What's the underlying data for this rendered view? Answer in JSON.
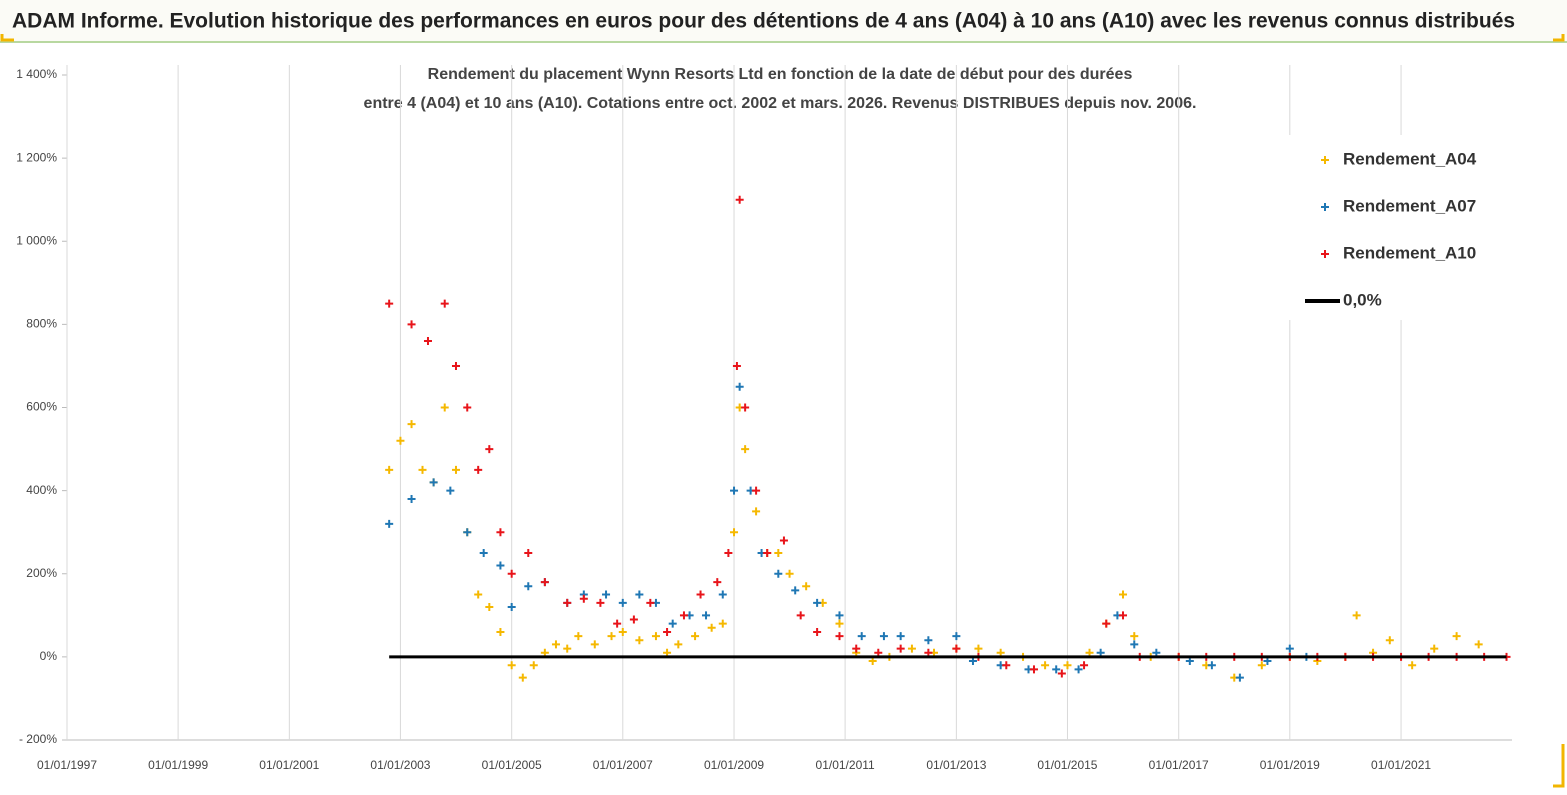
{
  "header": {
    "title": "ADAM Informe. Evolution historique des performances en euros pour des détentions de 4 ans (A04) à 10 ans (A10) avec les revenus connus distribués"
  },
  "chart_data": {
    "type": "scatter",
    "title": [
      "Rendement du placement Wynn Resorts Ltd en fonction de la date de début pour des durées",
      "entre 4 (A04) et 10 ans (A10). Cotations entre oct. 2002 et mars. 2026. Revenus DISTRIBUES depuis nov. 2006."
    ],
    "xlim": [
      "01/01/1997",
      "31/12/2022"
    ],
    "xticks": [
      "01/01/1997",
      "01/01/1999",
      "01/01/2001",
      "01/01/2003",
      "01/01/2005",
      "01/01/2007",
      "01/01/2009",
      "01/01/2011",
      "01/01/2013",
      "01/01/2015",
      "01/01/2017",
      "01/01/2019",
      "01/01/2021"
    ],
    "ylim": [
      -200,
      1400
    ],
    "yticks": [
      {
        "value": -200,
        "label": "- 200%"
      },
      {
        "value": 0,
        "label": "0%"
      },
      {
        "value": 200,
        "label": "200%"
      },
      {
        "value": 400,
        "label": "400%"
      },
      {
        "value": 600,
        "label": "600%"
      },
      {
        "value": 800,
        "label": "800%"
      },
      {
        "value": 1000,
        "label": "1 000%"
      },
      {
        "value": 1200,
        "label": "1 200%"
      },
      {
        "value": 1400,
        "label": "1 400%"
      }
    ],
    "grid": "x",
    "legend": "top-right",
    "series": [
      {
        "name": "Rendement_A04",
        "color": "#f5b800",
        "marker": "+",
        "x": [
          "19/10/2002",
          "01/01/2003",
          "15/03/2003",
          "26/05/2003",
          "07/08/2003",
          "19/10/2003",
          "01/01/2004",
          "15/03/2004",
          "26/05/2004",
          "07/08/2004",
          "19/10/2004",
          "01/01/2005",
          "15/03/2005",
          "26/05/2005",
          "07/08/2005",
          "19/10/2005",
          "01/01/2006",
          "15/03/2006",
          "01/07/2006",
          "19/10/2006",
          "01/01/2007",
          "20/04/2007",
          "07/08/2007",
          "19/10/2007",
          "01/01/2008",
          "20/04/2008",
          "07/08/2008",
          "19/10/2008",
          "01/01/2009",
          "07/02/2009",
          "15/03/2009",
          "26/05/2009",
          "07/08/2009",
          "19/10/2009",
          "01/01/2010",
          "20/04/2010",
          "07/08/2010",
          "25/11/2010",
          "15/03/2011",
          "01/07/2011",
          "19/10/2011",
          "15/03/2012",
          "07/08/2012",
          "01/01/2013",
          "26/05/2013",
          "19/10/2013",
          "15/03/2014",
          "07/08/2014",
          "01/01/2015",
          "26/05/2015",
          "13/09/2015",
          "01/01/2016",
          "15/03/2016",
          "01/07/2016",
          "01/01/2017",
          "01/07/2017",
          "01/01/2018",
          "01/07/2018",
          "01/01/2019",
          "01/07/2019",
          "01/01/2020",
          "15/03/2020",
          "01/07/2020",
          "19/10/2020",
          "15/03/2021",
          "07/08/2021",
          "01/01/2022",
          "26/05/2022"
        ],
        "values": [
          450,
          520,
          560,
          450,
          420,
          600,
          450,
          300,
          150,
          120,
          60,
          -20,
          -50,
          -20,
          10,
          30,
          20,
          50,
          30,
          50,
          60,
          40,
          50,
          10,
          30,
          50,
          70,
          80,
          300,
          600,
          500,
          350,
          250,
          250,
          200,
          170,
          130,
          80,
          10,
          -10,
          0,
          20,
          10,
          20,
          20,
          10,
          0,
          -20,
          -20,
          10,
          80,
          150,
          50,
          0,
          0,
          -20,
          -50,
          -20,
          0,
          -10,
          0,
          100,
          10,
          40,
          -20,
          20,
          50,
          30
        ]
      },
      {
        "name": "Rendement_A07",
        "color": "#1f77b4",
        "marker": "+",
        "x": [
          "19/10/2002",
          "15/03/2003",
          "07/08/2003",
          "25/11/2003",
          "15/03/2004",
          "01/07/2004",
          "19/10/2004",
          "01/01/2005",
          "20/04/2005",
          "07/08/2005",
          "01/01/2006",
          "20/04/2006",
          "13/09/2006",
          "01/01/2007",
          "20/04/2007",
          "07/08/2007",
          "25/11/2007",
          "15/03/2008",
          "01/07/2008",
          "19/10/2008",
          "01/01/2009",
          "07/02/2009",
          "20/04/2009",
          "01/07/2009",
          "19/10/2009",
          "07/02/2010",
          "01/07/2010",
          "25/11/2010",
          "20/04/2011",
          "13/09/2011",
          "01/01/2012",
          "01/07/2012",
          "01/01/2013",
          "20/04/2013",
          "19/10/2013",
          "20/04/2014",
          "19/10/2014",
          "15/03/2015",
          "07/08/2015",
          "25/11/2015",
          "15/03/2016",
          "07/08/2016",
          "15/03/2017",
          "07/08/2017",
          "07/02/2018",
          "07/08/2018",
          "01/01/2019",
          "20/04/2019"
        ],
        "values": [
          320,
          380,
          420,
          400,
          300,
          250,
          220,
          120,
          170,
          180,
          130,
          150,
          150,
          130,
          150,
          130,
          80,
          100,
          100,
          150,
          400,
          650,
          400,
          250,
          200,
          160,
          130,
          100,
          50,
          50,
          50,
          40,
          50,
          -10,
          -20,
          -30,
          -30,
          -30,
          10,
          100,
          30,
          10,
          -10,
          -20,
          -50,
          -10,
          20,
          0
        ]
      },
      {
        "name": "Rendement_A10",
        "color": "#e8141a",
        "marker": "+",
        "x": [
          "19/10/2002",
          "15/03/2003",
          "01/07/2003",
          "19/10/2003",
          "01/01/2004",
          "15/03/2004",
          "26/05/2004",
          "07/08/2004",
          "19/10/2004",
          "01/01/2005",
          "20/04/2005",
          "07/08/2005",
          "01/01/2006",
          "20/04/2006",
          "07/08/2006",
          "25/11/2006",
          "15/03/2007",
          "01/07/2007",
          "19/10/2007",
          "07/02/2008",
          "26/05/2008",
          "13/09/2008",
          "25/11/2008",
          "20/01/2009",
          "07/02/2009",
          "15/03/2009",
          "26/05/2009",
          "07/08/2009",
          "25/11/2009",
          "15/03/2010",
          "01/07/2010",
          "25/11/2010",
          "15/03/2011",
          "07/08/2011",
          "01/01/2012",
          "01/07/2012",
          "01/01/2013",
          "26/05/2013",
          "25/11/2013",
          "26/05/2014",
          "25/11/2014",
          "20/04/2015",
          "13/09/2015",
          "01/01/2016",
          "20/04/2016",
          "01/01/2017",
          "01/07/2017",
          "01/01/2018",
          "01/07/2018",
          "01/01/2019",
          "01/07/2019",
          "01/01/2020",
          "01/07/2020",
          "01/01/2021",
          "01/07/2021",
          "01/01/2022",
          "01/07/2022",
          "25/11/2022"
        ],
        "values": [
          850,
          800,
          760,
          850,
          700,
          600,
          450,
          500,
          300,
          200,
          250,
          180,
          130,
          140,
          130,
          80,
          90,
          130,
          60,
          100,
          150,
          180,
          250,
          700,
          1100,
          600,
          400,
          250,
          280,
          100,
          60,
          50,
          20,
          10,
          20,
          10,
          20,
          0,
          -20,
          -30,
          -40,
          -20,
          80,
          100,
          0,
          0,
          0,
          0,
          0,
          0,
          0,
          0,
          0,
          0,
          0,
          0,
          0,
          0
        ]
      },
      {
        "name": "0,0%",
        "color": "#000000",
        "type": "line",
        "x": [
          "19/10/2002",
          "25/11/2022"
        ],
        "values": [
          0,
          0
        ]
      }
    ]
  }
}
